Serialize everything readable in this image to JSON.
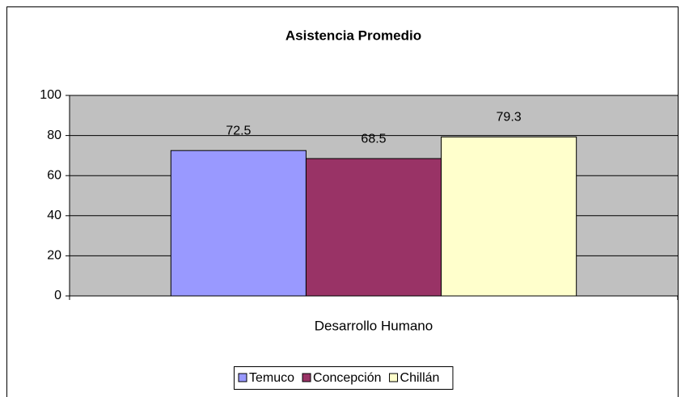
{
  "chart_data": {
    "type": "bar",
    "title": "Asistencia Promedio",
    "categories": [
      "Desarrollo Humano"
    ],
    "series": [
      {
        "name": "Temuco",
        "color": "#9999ff",
        "values": [
          72.5
        ]
      },
      {
        "name": "Concepción",
        "color": "#993366",
        "values": [
          68.5
        ]
      },
      {
        "name": "Chillán",
        "color": "#ffffcc",
        "values": [
          79.3
        ]
      }
    ],
    "ylim": [
      0,
      100
    ],
    "yticks": [
      0,
      20,
      40,
      60,
      80,
      100
    ],
    "grid": true,
    "legend": "bottom"
  }
}
